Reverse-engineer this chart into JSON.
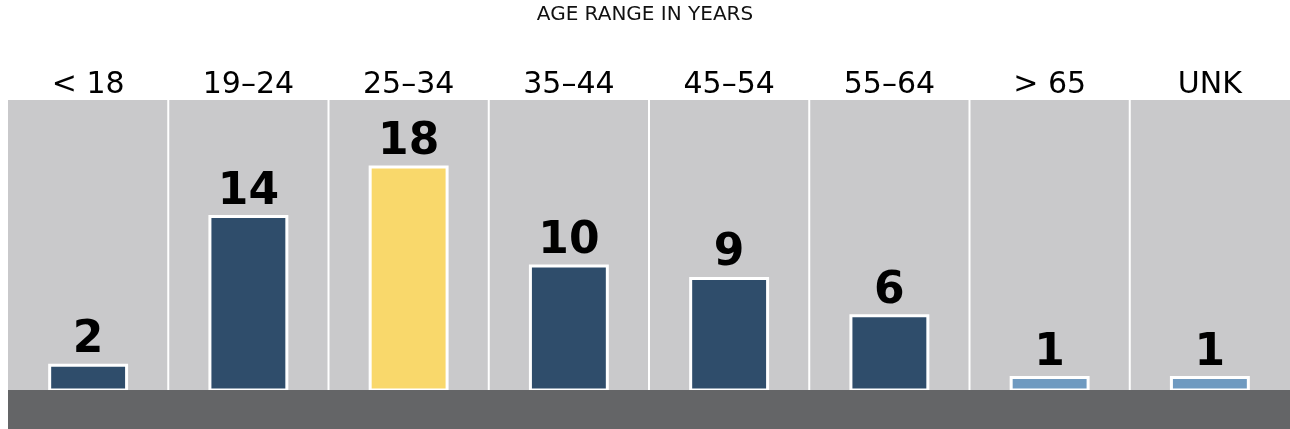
{
  "chart_data": {
    "type": "bar",
    "title": "AGE RANGE IN YEARS",
    "categories": [
      "< 18",
      "19–24",
      "25–34",
      "35–44",
      "45–54",
      "55–64",
      "> 65",
      "UNK"
    ],
    "values": [
      2,
      14,
      18,
      10,
      9,
      6,
      1,
      1
    ],
    "colors": [
      "#2f4d6b",
      "#2f4d6b",
      "#f9d86b",
      "#2f4d6b",
      "#2f4d6b",
      "#2f4d6b",
      "#6f9ac0",
      "#6f9ac0"
    ],
    "data_labels": true
  }
}
